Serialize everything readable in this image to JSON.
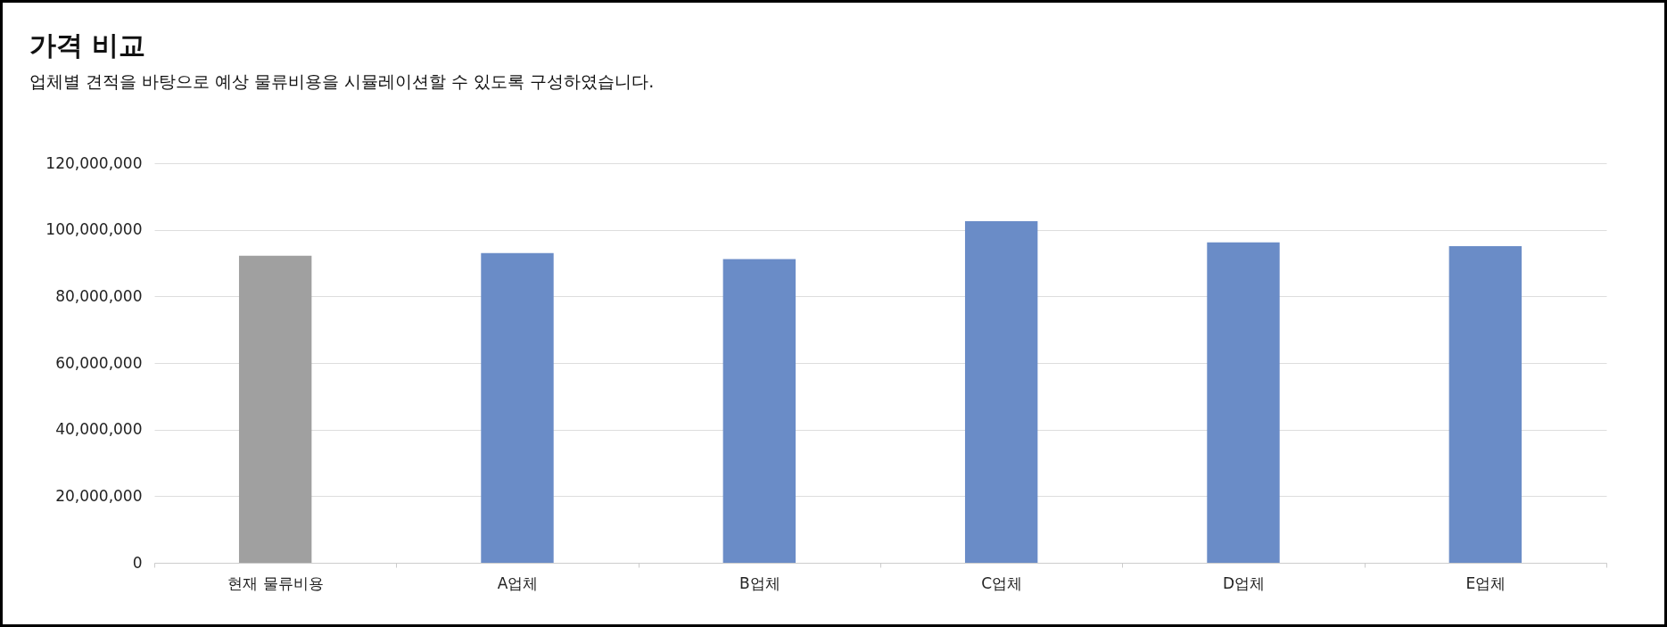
{
  "chart_data": {
    "type": "bar",
    "title": "가격 비교",
    "subtitle": "업체별 견적을 바탕으로 예상 물류비용을 시뮬레이션할 수 있도록 구성하였습니다.",
    "categories": [
      "현재 물류비용",
      "A업체",
      "B업체",
      "C업체",
      "D업체",
      "E업체"
    ],
    "values": [
      92200000,
      93000000,
      91200000,
      102600000,
      96200000,
      95100000
    ],
    "colors": [
      "#a0a0a0",
      "#6a8cc7",
      "#6a8cc7",
      "#6a8cc7",
      "#6a8cc7",
      "#6a8cc7"
    ],
    "ylim": [
      0,
      120000000
    ],
    "yticks": [
      0,
      {
        "value": 20000000,
        "label": "20,000,000"
      },
      {
        "value": 40000000,
        "label": "40,000,000"
      },
      {
        "value": 60000000,
        "label": "60,000,000"
      },
      {
        "value": 80000000,
        "label": "80,000,000"
      },
      {
        "value": 100000000,
        "label": "100,000,000"
      },
      {
        "value": 120000000,
        "label": "120,000,000"
      }
    ],
    "grid": "y"
  }
}
